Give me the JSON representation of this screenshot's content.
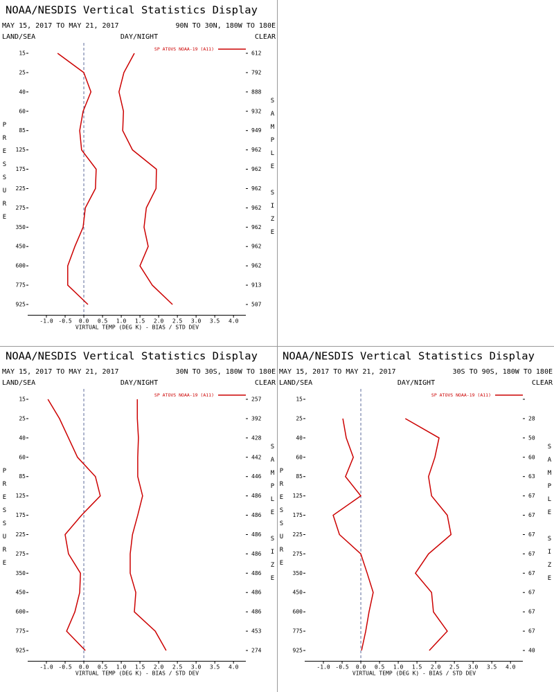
{
  "chart_data": [
    {
      "type": "line",
      "title": "NOAA/NESDIS Vertical Statistics Display",
      "subtitle": "MAY 15, 2017 TO MAY 21, 2017",
      "region": "90N TO 30N, 180W TO 180E",
      "left_header": "LAND/SEA",
      "center_header": "DAY/NIGHT",
      "right_header": "CLEAR",
      "ylabel": "PRESSURE",
      "y2label": "SAMPLE SIZE",
      "xlabel": "VIRTUAL TEMP (DEG K) - BIAS / STD DEV",
      "legend": "SP ATOVS NOAA-19 (A11)",
      "categories": [
        15,
        25,
        40,
        60,
        85,
        125,
        175,
        225,
        275,
        350,
        450,
        600,
        775,
        925
      ],
      "sample_sizes": [
        612,
        792,
        888,
        932,
        949,
        962,
        962,
        962,
        962,
        962,
        962,
        962,
        913,
        507
      ],
      "series": [
        {
          "color": "#cc0000",
          "values": [
            -0.7,
            0.0,
            0.19,
            -0.02,
            -0.11,
            -0.06,
            0.33,
            0.31,
            0.04,
            -0.02,
            -0.24,
            -0.43,
            -0.43,
            0.11
          ]
        },
        {
          "color": "#cc0000",
          "values": [
            1.35,
            1.07,
            0.94,
            1.06,
            1.04,
            1.3,
            1.94,
            1.93,
            1.67,
            1.61,
            1.72,
            1.5,
            1.83,
            2.37
          ]
        }
      ],
      "xlim": [
        -1.5,
        4.33
      ],
      "xticks": [
        {
          "value": -1,
          "label": "-1.0"
        },
        -0.5,
        {
          "value": 0,
          "label": "0.0"
        },
        0.5,
        {
          "value": 1,
          "label": "1.0"
        },
        1.5,
        {
          "value": 2,
          "label": "2.0"
        },
        2.5,
        {
          "value": 3,
          "label": "3.0"
        },
        3.5,
        {
          "value": 4,
          "label": "4.0"
        }
      ]
    },
    {
      "type": "line",
      "title": "NOAA/NESDIS Vertical Statistics Display",
      "subtitle": "MAY 15, 2017 TO MAY 21, 2017",
      "region": "30N TO 30S, 180W TO 180E",
      "left_header": "LAND/SEA",
      "center_header": "DAY/NIGHT",
      "right_header": "CLEAR",
      "ylabel": "PRESSURE",
      "y2label": "SAMPLE SIZE",
      "xlabel": "VIRTUAL TEMP (DEG K) - BIAS / STD DEV",
      "legend": "SP ATOVS NOAA-19 (A11)",
      "categories": [
        15,
        25,
        40,
        60,
        85,
        125,
        175,
        225,
        275,
        350,
        450,
        600,
        775,
        925
      ],
      "sample_sizes": [
        257,
        392,
        428,
        442,
        446,
        486,
        486,
        486,
        486,
        486,
        486,
        486,
        453,
        274
      ],
      "series": [
        {
          "color": "#cc0000",
          "values": [
            -0.96,
            -0.65,
            -0.41,
            -0.17,
            0.31,
            0.44,
            -0.06,
            -0.5,
            -0.41,
            -0.09,
            -0.11,
            -0.24,
            -0.46,
            0.04
          ]
        },
        {
          "color": "#cc0000",
          "values": [
            1.43,
            1.43,
            1.46,
            1.44,
            1.44,
            1.57,
            1.44,
            1.3,
            1.24,
            1.24,
            1.39,
            1.35,
            1.91,
            2.2
          ]
        }
      ],
      "xlim": [
        -1.5,
        4.33
      ],
      "xticks": [
        {
          "value": -1,
          "label": "-1.0"
        },
        -0.5,
        {
          "value": 0,
          "label": "0.0"
        },
        0.5,
        {
          "value": 1,
          "label": "1.0"
        },
        1.5,
        {
          "value": 2,
          "label": "2.0"
        },
        2.5,
        {
          "value": 3,
          "label": "3.0"
        },
        3.5,
        {
          "value": 4,
          "label": "4.0"
        }
      ]
    },
    {
      "type": "line",
      "title": "NOAA/NESDIS Vertical Statistics Display",
      "subtitle": "MAY 15, 2017 TO MAY 21, 2017",
      "region": "30S TO 90S, 180W TO 180E",
      "left_header": "LAND/SEA",
      "center_header": "DAY/NIGHT",
      "right_header": "CLEAR",
      "ylabel": "PRESSURE",
      "y2label": "SAMPLE SIZE",
      "xlabel": "VIRTUAL TEMP (DEG K) - BIAS / STD DEV",
      "legend": "SP ATOVS NOAA-19 (A11)",
      "categories": [
        15,
        25,
        40,
        60,
        85,
        125,
        175,
        225,
        275,
        350,
        450,
        600,
        775,
        925
      ],
      "sample_sizes": [
        null,
        28,
        50,
        60,
        63,
        67,
        67,
        67,
        67,
        67,
        67,
        67,
        67,
        40
      ],
      "series": [
        {
          "color": "#cc0000",
          "values": [
            null,
            -0.48,
            -0.39,
            -0.2,
            -0.41,
            0.0,
            -0.74,
            -0.57,
            0.0,
            0.17,
            0.33,
            0.22,
            0.13,
            0.02
          ]
        },
        {
          "color": "#cc0000",
          "values": [
            null,
            1.19,
            2.09,
            1.98,
            1.81,
            1.89,
            2.31,
            2.41,
            1.81,
            1.46,
            1.89,
            1.94,
            2.31,
            1.83
          ]
        }
      ],
      "xlim": [
        -1.5,
        4.33
      ],
      "xticks": [
        {
          "value": -1,
          "label": "-1.0"
        },
        -0.5,
        {
          "value": 0,
          "label": "0.0"
        },
        0.5,
        {
          "value": 1,
          "label": "1.0"
        },
        1.5,
        {
          "value": 2,
          "label": "2.0"
        },
        2.5,
        {
          "value": 3,
          "label": "3.0"
        },
        3.5,
        {
          "value": 4,
          "label": "4.0"
        }
      ]
    }
  ]
}
